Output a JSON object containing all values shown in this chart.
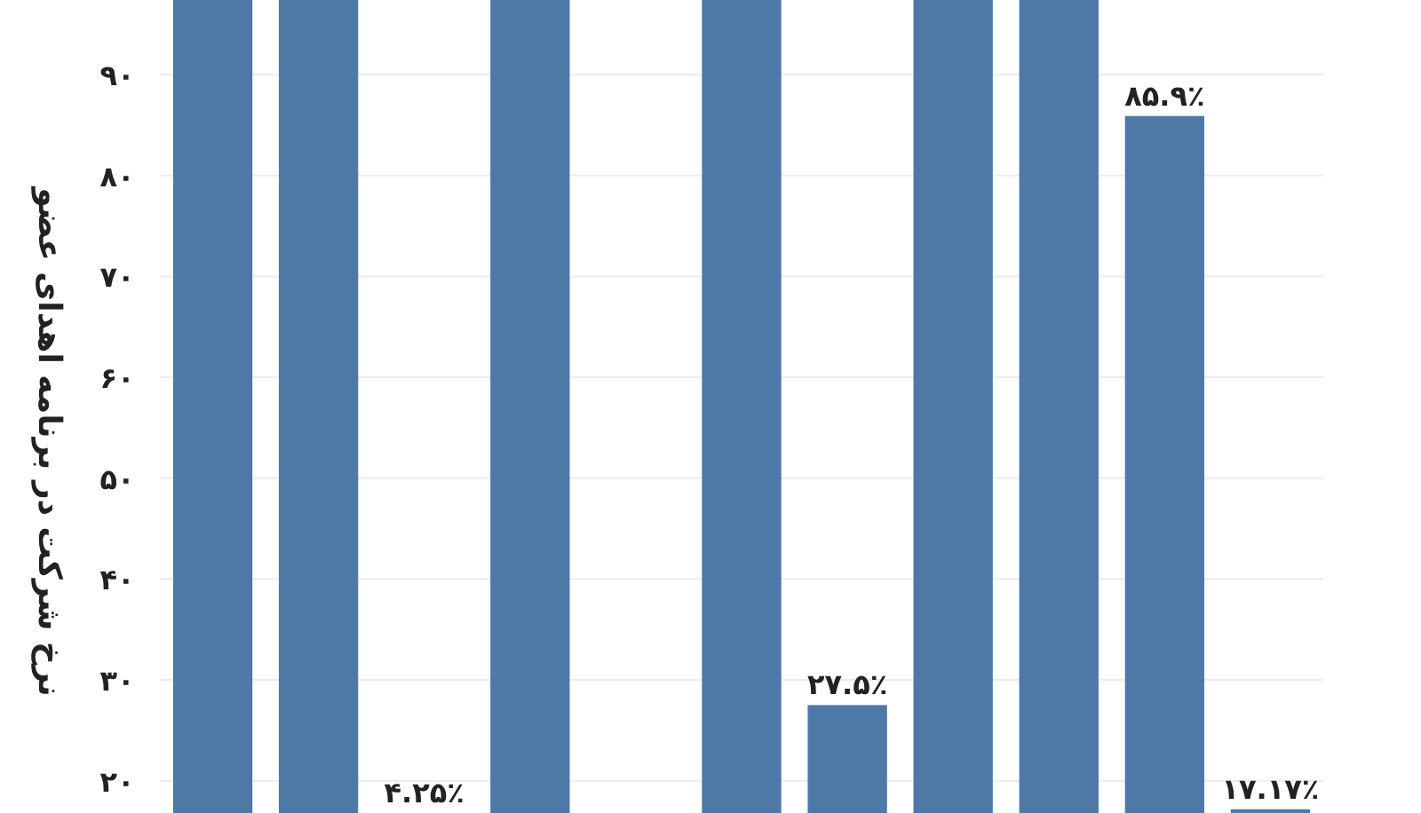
{
  "chart_data": {
    "type": "bar",
    "ylabel": "نرخ شرکت در برنامه اهدای عضو",
    "categories": [
      null,
      null,
      null,
      null,
      null,
      null,
      null,
      null,
      null,
      null,
      null
    ],
    "values": [
      97.4,
      97.4,
      null,
      97.4,
      null,
      97.4,
      27.5,
      97.4,
      97.4,
      85.9,
      17.17
    ],
    "value_labels": [
      null,
      null,
      "۴.۲۵٪",
      null,
      null,
      null,
      "۲۷.۵٪",
      null,
      null,
      "۸۵.۹٪",
      "۱۷.۱۷٪"
    ],
    "color": "#4e79a7",
    "ylim": [
      16.8,
      97.4
    ],
    "yticks": [
      {
        "value": 20,
        "label": "۲۰"
      },
      {
        "value": 30,
        "label": "۳۰"
      },
      {
        "value": 40,
        "label": "۴۰"
      },
      {
        "value": 50,
        "label": "۵۰"
      },
      {
        "value": 60,
        "label": "۶۰"
      },
      {
        "value": 70,
        "label": "۷۰"
      },
      {
        "value": 80,
        "label": "۸۰"
      },
      {
        "value": 90,
        "label": "۹۰"
      }
    ],
    "grid": "y",
    "tick_labels": "y"
  }
}
